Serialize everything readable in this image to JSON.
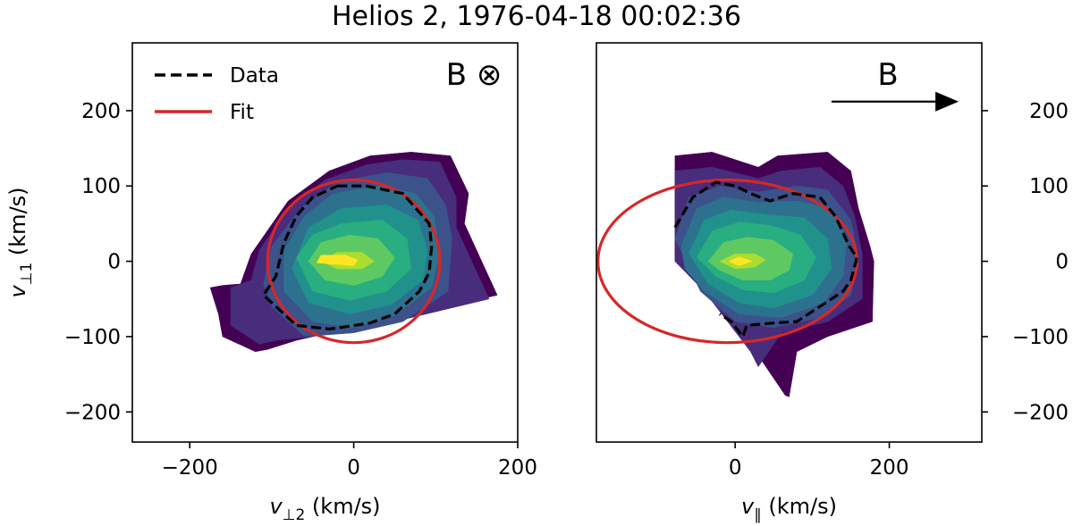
{
  "figure": {
    "title": "Helios 2, 1976-04-18 00:02:36"
  },
  "chart_data": [
    {
      "type": "contour",
      "panel": "left",
      "xlabel": "v⊥2 (km/s)",
      "xlabel_main": "v",
      "xlabel_sub": "⊥2",
      "xlabel_unit": " (km/s)",
      "ylabel": "v⊥1 (km/s)",
      "ylabel_main": "v",
      "ylabel_sub": "⊥1",
      "ylabel_unit": " (km/s)",
      "xlim": [
        -270,
        200
      ],
      "ylim": [
        -240,
        290
      ],
      "xticks": [
        -200,
        0,
        200
      ],
      "xtick_labels": [
        "−200",
        "0",
        "200"
      ],
      "yticks": [
        -200,
        -100,
        0,
        100,
        200
      ],
      "ytick_labels": [
        "−200",
        "−100",
        "0",
        "100",
        "200"
      ],
      "field_label": "B ⊗",
      "legend": {
        "position": "top-left",
        "entries": [
          {
            "label": "Data",
            "style": "dashed",
            "color": "#000000"
          },
          {
            "label": "Fit",
            "style": "solid",
            "color": "#d62728"
          }
        ]
      },
      "colormap": "viridis",
      "contour_levels": [
        {
          "color": "#440154",
          "polygon": [
            [
              -105,
              -117
            ],
            [
              -70,
              -105
            ],
            [
              175,
              -45
            ],
            [
              135,
              50
            ],
            [
              140,
              90
            ],
            [
              118,
              140
            ],
            [
              70,
              145
            ],
            [
              20,
              140
            ],
            [
              -30,
              120
            ],
            [
              -80,
              80
            ],
            [
              -125,
              10
            ],
            [
              -138,
              -30
            ],
            [
              -160,
              -32
            ],
            [
              -175,
              -35
            ],
            [
              -165,
              -70
            ],
            [
              -160,
              -100
            ],
            [
              -120,
              -120
            ]
          ]
        },
        {
          "color": "#472d7b",
          "polygon": [
            [
              -95,
              -105
            ],
            [
              -50,
              -100
            ],
            [
              50,
              -80
            ],
            [
              165,
              -50
            ],
            [
              125,
              45
            ],
            [
              125,
              85
            ],
            [
              105,
              132
            ],
            [
              60,
              135
            ],
            [
              15,
              128
            ],
            [
              -35,
              108
            ],
            [
              -80,
              70
            ],
            [
              -115,
              15
            ],
            [
              -125,
              -25
            ],
            [
              -150,
              -35
            ],
            [
              -150,
              -85
            ],
            [
              -115,
              -110
            ]
          ]
        },
        {
          "color": "#3b528b",
          "polygon": [
            [
              -100,
              -60
            ],
            [
              -60,
              -100
            ],
            [
              0,
              -95
            ],
            [
              60,
              -80
            ],
            [
              115,
              -40
            ],
            [
              120,
              30
            ],
            [
              112,
              75
            ],
            [
              90,
              110
            ],
            [
              40,
              118
            ],
            [
              -20,
              105
            ],
            [
              -65,
              70
            ],
            [
              -100,
              20
            ],
            [
              -110,
              -30
            ]
          ]
        },
        {
          "color": "#2c728e",
          "polygon": [
            [
              -85,
              -40
            ],
            [
              -50,
              -80
            ],
            [
              0,
              -88
            ],
            [
              50,
              -72
            ],
            [
              95,
              -35
            ],
            [
              105,
              10
            ],
            [
              98,
              60
            ],
            [
              75,
              90
            ],
            [
              30,
              100
            ],
            [
              -25,
              90
            ],
            [
              -60,
              60
            ],
            [
              -85,
              15
            ]
          ]
        },
        {
          "color": "#21918c",
          "polygon": [
            [
              -75,
              -10
            ],
            [
              -55,
              -55
            ],
            [
              -5,
              -70
            ],
            [
              45,
              -58
            ],
            [
              85,
              -25
            ],
            [
              90,
              15
            ],
            [
              78,
              55
            ],
            [
              40,
              75
            ],
            [
              -15,
              70
            ],
            [
              -55,
              45
            ]
          ]
        },
        {
          "color": "#28ae80",
          "polygon": [
            [
              -70,
              5
            ],
            [
              -50,
              -40
            ],
            [
              -5,
              -52
            ],
            [
              40,
              -40
            ],
            [
              70,
              -10
            ],
            [
              65,
              30
            ],
            [
              35,
              55
            ],
            [
              -15,
              50
            ],
            [
              -50,
              35
            ]
          ]
        },
        {
          "color": "#5ec962",
          "polygon": [
            [
              -55,
              0
            ],
            [
              -35,
              -25
            ],
            [
              0,
              -32
            ],
            [
              35,
              -20
            ],
            [
              50,
              5
            ],
            [
              30,
              30
            ],
            [
              -5,
              35
            ],
            [
              -40,
              25
            ]
          ]
        },
        {
          "color": "#addc30",
          "polygon": [
            [
              -40,
              0
            ],
            [
              -20,
              -10
            ],
            [
              10,
              -10
            ],
            [
              25,
              0
            ],
            [
              10,
              12
            ],
            [
              -20,
              12
            ]
          ]
        },
        {
          "color": "#fde725",
          "polygon": [
            [
              -45,
              -2
            ],
            [
              0,
              -6
            ],
            [
              5,
              2
            ],
            [
              -10,
              8
            ],
            [
              -40,
              8
            ]
          ]
        }
      ],
      "data_contour": [
        [
          -20,
          100
        ],
        [
          15,
          100
        ],
        [
          60,
          90
        ],
        [
          92,
          50
        ],
        [
          95,
          20
        ],
        [
          92,
          -15
        ],
        [
          80,
          -40
        ],
        [
          50,
          -70
        ],
        [
          20,
          -82
        ],
        [
          -30,
          -90
        ],
        [
          -70,
          -85
        ],
        [
          -95,
          -60
        ],
        [
          -110,
          -45
        ],
        [
          -95,
          -20
        ],
        [
          -85,
          25
        ],
        [
          -70,
          60
        ],
        [
          -50,
          85
        ],
        [
          -20,
          100
        ]
      ],
      "fit_ellipse": {
        "cx": 0,
        "cy": 0,
        "rx": 105,
        "ry": 108,
        "color": "#d62728"
      }
    },
    {
      "type": "contour",
      "panel": "right",
      "xlabel": "v∥ (km/s)",
      "xlabel_main": "v",
      "xlabel_sub": "∥",
      "xlabel_unit": " (km/s)",
      "xlim": [
        -180,
        320
      ],
      "ylim": [
        -240,
        290
      ],
      "xticks": [
        0,
        200
      ],
      "xtick_labels": [
        "0",
        "200"
      ],
      "yticks": [
        -200,
        -100,
        0,
        100,
        200
      ],
      "ytick_labels": [
        "−200",
        "−100",
        "0",
        "100",
        "200"
      ],
      "ytick_side": "right",
      "field_label": "B",
      "field_arrow": {
        "from": [
          125,
          212
        ],
        "to": [
          290,
          212
        ]
      },
      "colormap": "viridis",
      "contour_levels": [
        {
          "color": "#440154",
          "polygon": [
            [
              -78,
              0
            ],
            [
              -78,
              140
            ],
            [
              -30,
              145
            ],
            [
              30,
              125
            ],
            [
              55,
              140
            ],
            [
              120,
              145
            ],
            [
              150,
              120
            ],
            [
              160,
              70
            ],
            [
              175,
              20
            ],
            [
              180,
              0
            ],
            [
              178,
              -80
            ],
            [
              120,
              -100
            ],
            [
              80,
              -120
            ],
            [
              70,
              -180
            ],
            [
              65,
              -178
            ],
            [
              10,
              -95
            ],
            [
              -40,
              -40
            ]
          ]
        },
        {
          "color": "#472d7b",
          "polygon": [
            [
              -78,
              0
            ],
            [
              -78,
              120
            ],
            [
              -30,
              125
            ],
            [
              30,
              110
            ],
            [
              60,
              120
            ],
            [
              110,
              125
            ],
            [
              140,
              100
            ],
            [
              155,
              60
            ],
            [
              165,
              10
            ],
            [
              165,
              -50
            ],
            [
              120,
              -80
            ],
            [
              60,
              -95
            ],
            [
              30,
              -140
            ],
            [
              20,
              -120
            ],
            [
              -40,
              -40
            ]
          ]
        },
        {
          "color": "#3b528b",
          "polygon": [
            [
              -78,
              30
            ],
            [
              -60,
              85
            ],
            [
              -20,
              100
            ],
            [
              30,
              92
            ],
            [
              80,
              100
            ],
            [
              120,
              95
            ],
            [
              150,
              55
            ],
            [
              160,
              5
            ],
            [
              150,
              -45
            ],
            [
              110,
              -75
            ],
            [
              50,
              -88
            ],
            [
              0,
              -80
            ],
            [
              -45,
              -40
            ]
          ]
        },
        {
          "color": "#2c728e",
          "polygon": [
            [
              -70,
              20
            ],
            [
              -50,
              70
            ],
            [
              -15,
              85
            ],
            [
              30,
              78
            ],
            [
              80,
              80
            ],
            [
              125,
              70
            ],
            [
              145,
              30
            ],
            [
              140,
              -20
            ],
            [
              115,
              -55
            ],
            [
              60,
              -75
            ],
            [
              5,
              -70
            ],
            [
              -40,
              -40
            ],
            [
              -65,
              -10
            ]
          ]
        },
        {
          "color": "#21918c",
          "polygon": [
            [
              -60,
              10
            ],
            [
              -40,
              55
            ],
            [
              -5,
              68
            ],
            [
              40,
              62
            ],
            [
              90,
              58
            ],
            [
              120,
              30
            ],
            [
              125,
              -10
            ],
            [
              100,
              -45
            ],
            [
              50,
              -62
            ],
            [
              5,
              -55
            ],
            [
              -35,
              -30
            ]
          ]
        },
        {
          "color": "#28ae80",
          "polygon": [
            [
              -50,
              5
            ],
            [
              -30,
              40
            ],
            [
              5,
              52
            ],
            [
              45,
              48
            ],
            [
              85,
              35
            ],
            [
              105,
              5
            ],
            [
              90,
              -25
            ],
            [
              50,
              -42
            ],
            [
              10,
              -38
            ],
            [
              -25,
              -20
            ]
          ]
        },
        {
          "color": "#5ec962",
          "polygon": [
            [
              -35,
              0
            ],
            [
              -15,
              25
            ],
            [
              15,
              32
            ],
            [
              50,
              28
            ],
            [
              75,
              10
            ],
            [
              70,
              -12
            ],
            [
              45,
              -25
            ],
            [
              10,
              -25
            ],
            [
              -20,
              -12
            ]
          ]
        },
        {
          "color": "#addc30",
          "polygon": [
            [
              -20,
              0
            ],
            [
              0,
              10
            ],
            [
              25,
              10
            ],
            [
              40,
              2
            ],
            [
              25,
              -8
            ],
            [
              0,
              -10
            ]
          ]
        },
        {
          "color": "#fde725",
          "polygon": [
            [
              -8,
              0
            ],
            [
              5,
              6
            ],
            [
              22,
              0
            ],
            [
              5,
              -6
            ]
          ]
        }
      ],
      "data_contour": [
        [
          -78,
          45
        ],
        [
          -55,
          85
        ],
        [
          -25,
          105
        ],
        [
          0,
          100
        ],
        [
          20,
          90
        ],
        [
          45,
          80
        ],
        [
          75,
          90
        ],
        [
          110,
          85
        ],
        [
          130,
          60
        ],
        [
          148,
          20
        ],
        [
          158,
          5
        ],
        [
          150,
          -25
        ],
        [
          140,
          -40
        ],
        [
          110,
          -60
        ],
        [
          80,
          -80
        ],
        [
          50,
          -82
        ],
        [
          15,
          -85
        ],
        [
          10,
          -100
        ],
        [
          -5,
          -80
        ],
        [
          -20,
          -70
        ]
      ],
      "fit_ellipse": {
        "cx": -10,
        "cy": 0,
        "rx": 168,
        "ry": 108,
        "color": "#d62728"
      }
    }
  ]
}
